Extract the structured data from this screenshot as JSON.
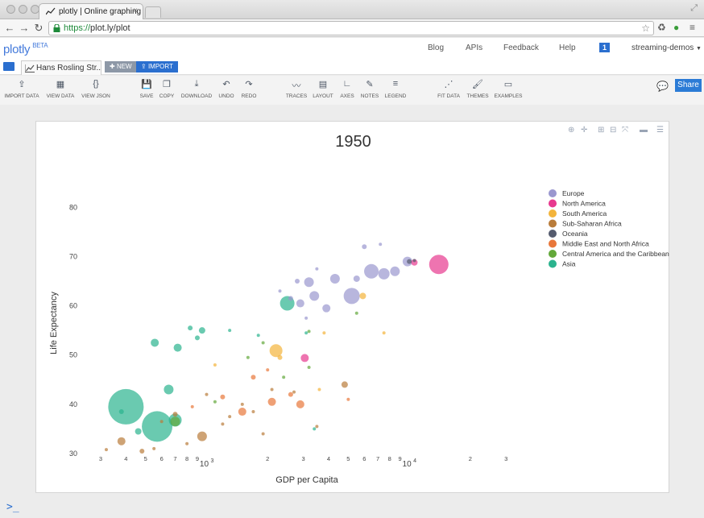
{
  "browser": {
    "tab_title": "plotly | Online graphing a",
    "url_scheme": "https://",
    "url_rest": "plot.ly/plot"
  },
  "header": {
    "logo": "plotly",
    "logo_badge": "BETA",
    "links": [
      "Blog",
      "APIs",
      "Feedback",
      "Help"
    ],
    "notifications": "1",
    "user": "streaming-demos"
  },
  "filebar": {
    "file_tab": "Hans Rosling Str...",
    "new_label": "NEW",
    "import_label": "IMPORT"
  },
  "toolbar": [
    {
      "label": "IMPORT DATA",
      "icon": "upload-icon"
    },
    {
      "label": "VIEW DATA",
      "icon": "grid-icon"
    },
    {
      "label": "VIEW JSON",
      "icon": "braces-icon"
    },
    {
      "label": "SAVE",
      "icon": "save-icon"
    },
    {
      "label": "COPY",
      "icon": "copy-icon"
    },
    {
      "label": "DOWNLOAD",
      "icon": "download-icon"
    },
    {
      "label": "UNDO",
      "icon": "undo-icon"
    },
    {
      "label": "REDO",
      "icon": "redo-icon"
    },
    {
      "label": "TRACES",
      "icon": "traces-icon"
    },
    {
      "label": "LAYOUT",
      "icon": "layout-icon"
    },
    {
      "label": "AXES",
      "icon": "axes-icon"
    },
    {
      "label": "NOTES",
      "icon": "notes-icon"
    },
    {
      "label": "LEGEND",
      "icon": "legend-icon"
    },
    {
      "label": "FIT DATA",
      "icon": "fit-data-icon"
    },
    {
      "label": "THEMES",
      "icon": "themes-icon"
    },
    {
      "label": "EXAMPLES",
      "icon": "examples-icon"
    }
  ],
  "share_label": "Share",
  "terminal_prompt": ">_",
  "chart_data": {
    "type": "scatter",
    "title": "1950",
    "xlabel": "GDP per Capita",
    "ylabel": "Life Expectancy",
    "xscale": "log",
    "xlim": [
      250,
      35000
    ],
    "ylim": [
      30,
      83
    ],
    "yticks": [
      30,
      40,
      50,
      60,
      70,
      80
    ],
    "xticks": [
      {
        "v": 300,
        "t": "3"
      },
      {
        "v": 400,
        "t": "4"
      },
      {
        "v": 500,
        "t": "5"
      },
      {
        "v": 600,
        "t": "6"
      },
      {
        "v": 700,
        "t": "7"
      },
      {
        "v": 800,
        "t": "8"
      },
      {
        "v": 900,
        "t": "9"
      },
      {
        "v": 1000,
        "t": "10^3"
      },
      {
        "v": 2000,
        "t": "2"
      },
      {
        "v": 3000,
        "t": "3"
      },
      {
        "v": 4000,
        "t": "4"
      },
      {
        "v": 5000,
        "t": "5"
      },
      {
        "v": 6000,
        "t": "6"
      },
      {
        "v": 7000,
        "t": "7"
      },
      {
        "v": 8000,
        "t": "8"
      },
      {
        "v": 9000,
        "t": "9"
      },
      {
        "v": 10000,
        "t": "10^4"
      },
      {
        "v": 20000,
        "t": "2"
      },
      {
        "v": 30000,
        "t": "3"
      }
    ],
    "legend_position": "right",
    "series": [
      {
        "name": "Europe",
        "color": "#9a97cf",
        "points": [
          {
            "x": 9800,
            "y": 69,
            "r": 6
          },
          {
            "x": 8500,
            "y": 67,
            "r": 6
          },
          {
            "x": 6500,
            "y": 67,
            "r": 9
          },
          {
            "x": 7500,
            "y": 66.5,
            "r": 7
          },
          {
            "x": 5500,
            "y": 65.5,
            "r": 4
          },
          {
            "x": 4300,
            "y": 65.5,
            "r": 6
          },
          {
            "x": 3200,
            "y": 64.8,
            "r": 6
          },
          {
            "x": 5200,
            "y": 62,
            "r": 10
          },
          {
            "x": 3400,
            "y": 62,
            "r": 6
          },
          {
            "x": 3900,
            "y": 59.5,
            "r": 5
          },
          {
            "x": 2900,
            "y": 60.5,
            "r": 5
          },
          {
            "x": 2600,
            "y": 61.5,
            "r": 3
          },
          {
            "x": 6000,
            "y": 72,
            "r": 3
          },
          {
            "x": 7200,
            "y": 72.5,
            "r": 2
          },
          {
            "x": 2800,
            "y": 65,
            "r": 3
          },
          {
            "x": 3500,
            "y": 67.5,
            "r": 2
          },
          {
            "x": 2300,
            "y": 63,
            "r": 2
          },
          {
            "x": 3100,
            "y": 57.5,
            "r": 2
          }
        ]
      },
      {
        "name": "North America",
        "color": "#e7398f",
        "points": [
          {
            "x": 13990,
            "y": 68.4,
            "r": 12
          },
          {
            "x": 10600,
            "y": 68.8,
            "r": 4
          },
          {
            "x": 3050,
            "y": 49.4,
            "r": 5
          }
        ]
      },
      {
        "name": "South America",
        "color": "#f3b43b",
        "points": [
          {
            "x": 2200,
            "y": 50.9,
            "r": 8
          },
          {
            "x": 5900,
            "y": 62,
            "r": 4
          },
          {
            "x": 3800,
            "y": 54.5,
            "r": 2
          },
          {
            "x": 2300,
            "y": 49.5,
            "r": 3
          },
          {
            "x": 7500,
            "y": 54.5,
            "r": 2
          },
          {
            "x": 3600,
            "y": 43,
            "r": 2
          },
          {
            "x": 1100,
            "y": 48,
            "r": 2
          }
        ]
      },
      {
        "name": "Sub-Saharan Africa",
        "color": "#b97c3a",
        "points": [
          {
            "x": 950,
            "y": 33.5,
            "r": 6
          },
          {
            "x": 380,
            "y": 32.5,
            "r": 5
          },
          {
            "x": 700,
            "y": 38,
            "r": 3
          },
          {
            "x": 1200,
            "y": 36,
            "r": 2
          },
          {
            "x": 1500,
            "y": 40,
            "r": 2
          },
          {
            "x": 480,
            "y": 30.5,
            "r": 3
          },
          {
            "x": 600,
            "y": 36.5,
            "r": 2
          },
          {
            "x": 1000,
            "y": 42,
            "r": 2
          },
          {
            "x": 2100,
            "y": 43,
            "r": 2
          },
          {
            "x": 3500,
            "y": 35.5,
            "r": 2
          },
          {
            "x": 4800,
            "y": 44,
            "r": 4
          },
          {
            "x": 800,
            "y": 32,
            "r": 2
          },
          {
            "x": 550,
            "y": 31,
            "r": 2
          },
          {
            "x": 1700,
            "y": 38.5,
            "r": 2
          },
          {
            "x": 1300,
            "y": 37.5,
            "r": 2
          },
          {
            "x": 320,
            "y": 30.8,
            "r": 2
          },
          {
            "x": 1900,
            "y": 34,
            "r": 2
          },
          {
            "x": 2700,
            "y": 42.5,
            "r": 2
          }
        ]
      },
      {
        "name": "Oceania",
        "color": "#555b6e",
        "points": [
          {
            "x": 10000,
            "y": 69,
            "r": 3
          },
          {
            "x": 10600,
            "y": 69.2,
            "r": 2
          }
        ]
      },
      {
        "name": "Middle East and North Africa",
        "color": "#e8773a",
        "points": [
          {
            "x": 2100,
            "y": 40.5,
            "r": 5
          },
          {
            "x": 1500,
            "y": 38.5,
            "r": 5
          },
          {
            "x": 2900,
            "y": 40,
            "r": 5
          },
          {
            "x": 1700,
            "y": 45.5,
            "r": 3
          },
          {
            "x": 2600,
            "y": 42,
            "r": 3
          },
          {
            "x": 5000,
            "y": 41,
            "r": 2
          },
          {
            "x": 1200,
            "y": 41.5,
            "r": 3
          },
          {
            "x": 850,
            "y": 39.5,
            "r": 2
          },
          {
            "x": 2000,
            "y": 47,
            "r": 2
          }
        ]
      },
      {
        "name": "Central America and the Caribbean",
        "color": "#63a83a",
        "points": [
          {
            "x": 700,
            "y": 36.5,
            "r": 6
          },
          {
            "x": 5500,
            "y": 58.5,
            "r": 2
          },
          {
            "x": 3200,
            "y": 54.8,
            "r": 2
          },
          {
            "x": 2400,
            "y": 45.5,
            "r": 2
          },
          {
            "x": 3200,
            "y": 47.5,
            "r": 2
          },
          {
            "x": 1900,
            "y": 52.5,
            "r": 2
          },
          {
            "x": 1100,
            "y": 40.5,
            "r": 2
          },
          {
            "x": 1600,
            "y": 49.5,
            "r": 2
          }
        ]
      },
      {
        "name": "Asia",
        "color": "#2bb38e",
        "points": [
          {
            "x": 400,
            "y": 39.5,
            "r": 22
          },
          {
            "x": 570,
            "y": 35.5,
            "r": 19
          },
          {
            "x": 700,
            "y": 36.8,
            "r": 8
          },
          {
            "x": 650,
            "y": 43,
            "r": 6
          },
          {
            "x": 720,
            "y": 51.5,
            "r": 5
          },
          {
            "x": 555,
            "y": 52.5,
            "r": 5
          },
          {
            "x": 2500,
            "y": 60.5,
            "r": 9
          },
          {
            "x": 950,
            "y": 55,
            "r": 4
          },
          {
            "x": 900,
            "y": 53.5,
            "r": 3
          },
          {
            "x": 1300,
            "y": 55,
            "r": 2
          },
          {
            "x": 3100,
            "y": 54.5,
            "r": 2
          },
          {
            "x": 1800,
            "y": 54,
            "r": 2
          },
          {
            "x": 460,
            "y": 34.5,
            "r": 4
          },
          {
            "x": 380,
            "y": 38.5,
            "r": 3
          },
          {
            "x": 3400,
            "y": 35,
            "r": 2
          },
          {
            "x": 830,
            "y": 55.5,
            "r": 3
          }
        ]
      }
    ]
  }
}
